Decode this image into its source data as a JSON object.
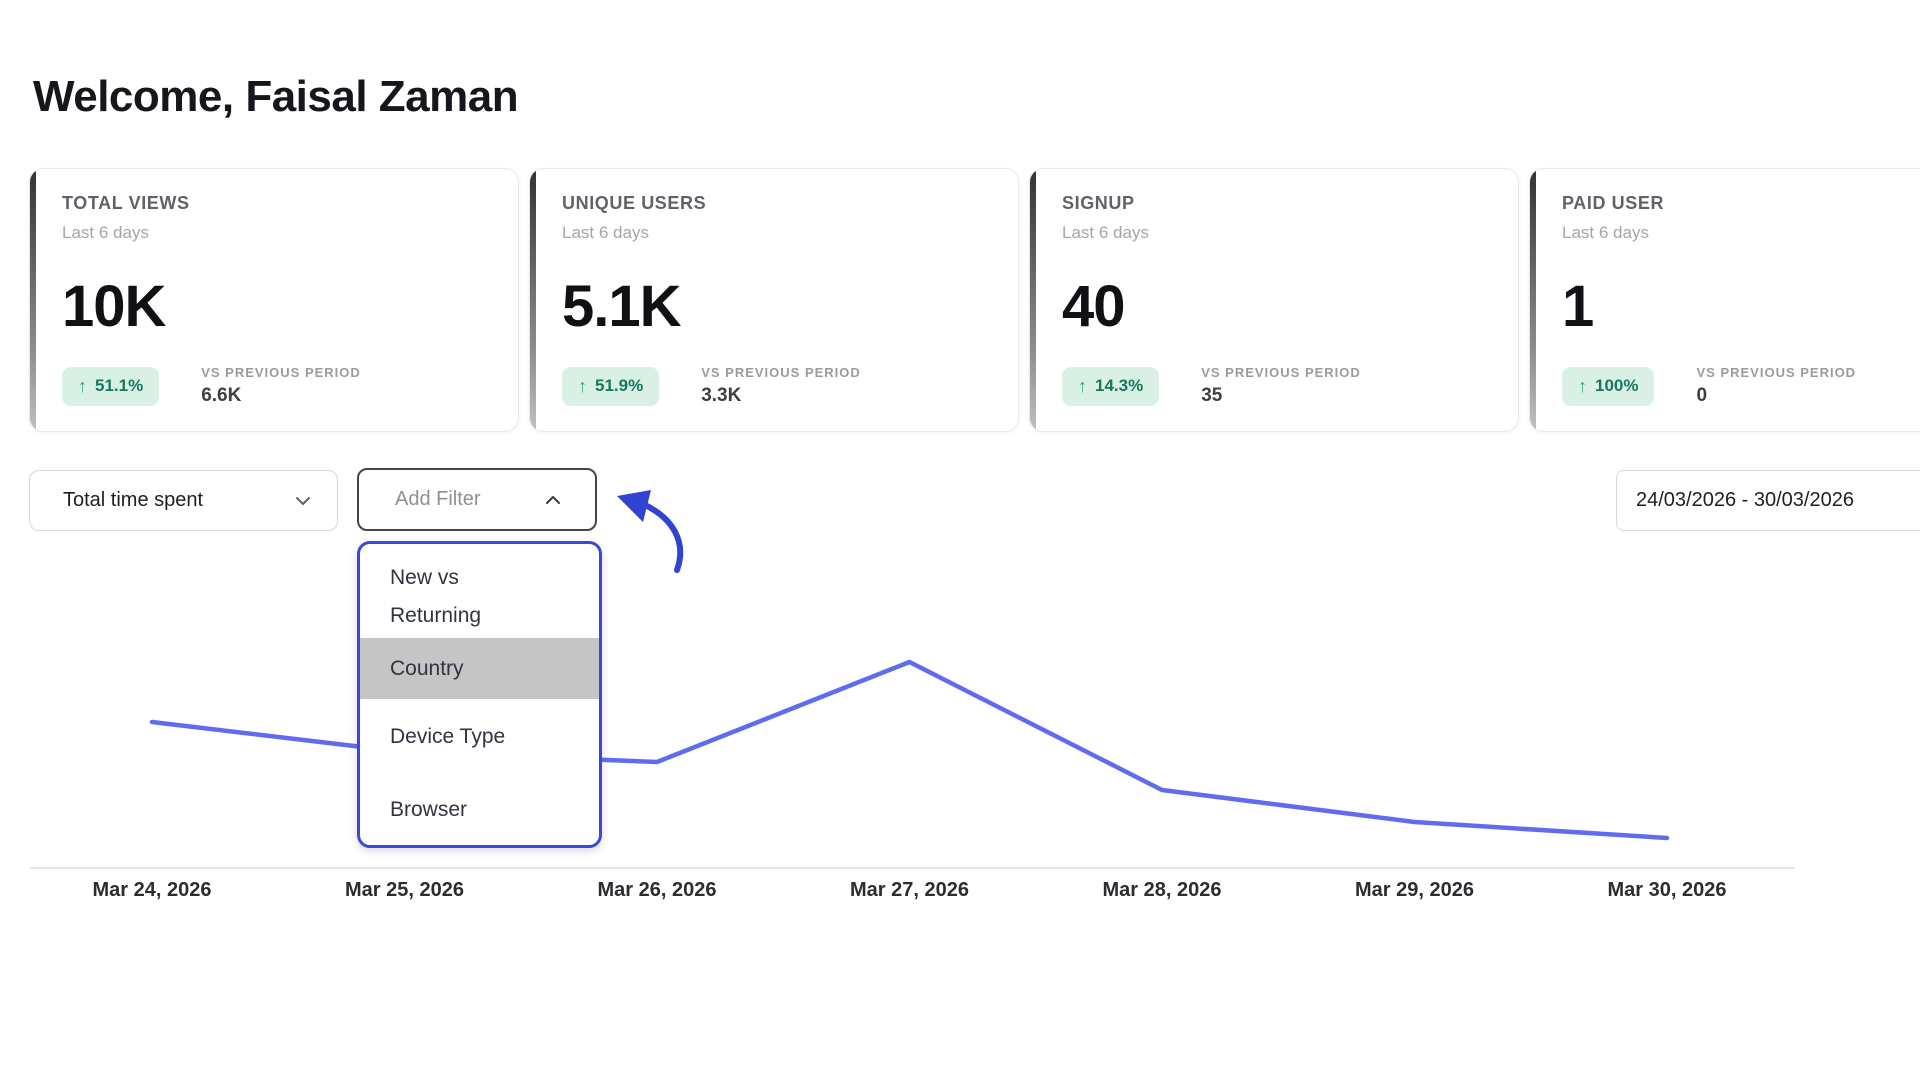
{
  "page": {
    "title": "Welcome, Faisal Zaman"
  },
  "icons": {
    "trend_up": "↑"
  },
  "cards": [
    {
      "title": "TOTAL VIEWS",
      "subtitle": "Last 6 days",
      "value": "10K",
      "change": "51.1%",
      "change_direction": "up",
      "vs_label": "VS PREVIOUS PERIOD",
      "previous_value": "6.6K"
    },
    {
      "title": "UNIQUE USERS",
      "subtitle": "Last 6 days",
      "value": "5.1K",
      "change": "51.9%",
      "change_direction": "up",
      "vs_label": "VS PREVIOUS PERIOD",
      "previous_value": "3.3K"
    },
    {
      "title": "SIGNUP",
      "subtitle": "Last 6 days",
      "value": "40",
      "change": "14.3%",
      "change_direction": "up",
      "vs_label": "VS PREVIOUS PERIOD",
      "previous_value": "35"
    },
    {
      "title": "PAID USER",
      "subtitle": "Last 6 days",
      "value": "1",
      "change": "100%",
      "change_direction": "up",
      "vs_label": "VS PREVIOUS PERIOD",
      "previous_value": "0"
    }
  ],
  "filters": {
    "metric_select": {
      "value": "Total time spent"
    },
    "add_filter": {
      "label": "Add Filter",
      "open": true,
      "options": [
        {
          "label": "New vs Returning",
          "highlighted": false
        },
        {
          "label": "Country",
          "highlighted": true
        },
        {
          "label": "Device Type",
          "highlighted": false
        },
        {
          "label": "Browser",
          "highlighted": false
        }
      ]
    },
    "date_range": {
      "value": "24/03/2026 - 30/03/2026"
    }
  },
  "chart_data": {
    "type": "line",
    "title": "",
    "x": [
      "Mar 24, 2026",
      "Mar 25, 2026",
      "Mar 26, 2026",
      "Mar 27, 2026",
      "Mar 28, 2026",
      "Mar 29, 2026",
      "Mar 30, 2026"
    ],
    "series": [
      {
        "name": "Total time spent",
        "values": [
          146,
          116,
          106,
          206,
          78,
          46,
          30
        ]
      }
    ],
    "y_unit": "relative (no y-axis shown)",
    "xlabel": "",
    "ylabel": "",
    "grid": false,
    "legend": "none",
    "line_color": "#5f6cf0",
    "axis_color": "#e4e4e4"
  },
  "colors": {
    "accent_blue": "#3b49d8",
    "chart_line": "#5f6cf0",
    "badge_bg": "#d9f0e4",
    "badge_text": "#17785f",
    "highlight_gray": "#c5c5c5"
  }
}
